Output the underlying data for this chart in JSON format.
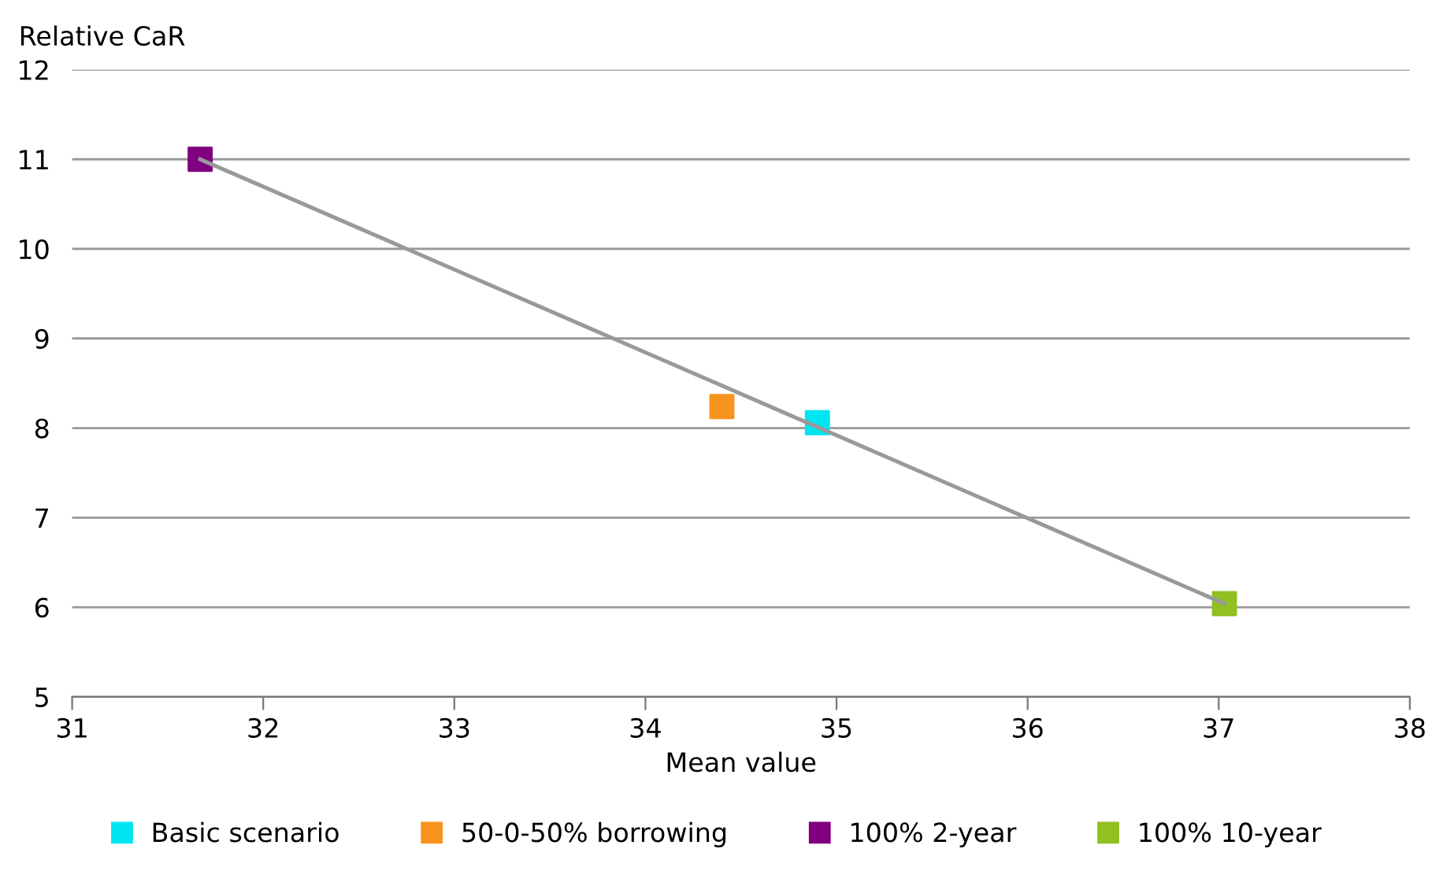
{
  "chart_data": {
    "type": "scatter",
    "ylabel": "Relative CaR",
    "xlabel": "Mean value",
    "series": [
      {
        "type": "line",
        "marker": "none",
        "color": "#999999",
        "x": [
          31.67,
          37.03
        ],
        "values": [
          11.0,
          6.04
        ]
      },
      {
        "name": "Basic scenario",
        "color": "#00e5f0",
        "x": [
          34.9
        ],
        "values": [
          8.06
        ]
      },
      {
        "name": "50-0-50% borrowing",
        "color": "#f7941d",
        "x": [
          34.4
        ],
        "values": [
          8.24
        ]
      },
      {
        "name": "100% 2-year",
        "color": "#800080",
        "x": [
          31.67
        ],
        "values": [
          11.0
        ]
      },
      {
        "name": "100% 10-year",
        "color": "#92c020",
        "x": [
          37.03
        ],
        "values": [
          6.04
        ]
      }
    ],
    "xlim": [
      31,
      38
    ],
    "xticks": [
      31,
      32,
      33,
      34,
      35,
      36,
      37,
      38
    ],
    "ylim": [
      5,
      12
    ],
    "yticks": [
      5,
      6,
      7,
      8,
      9,
      10,
      11,
      12
    ],
    "grid": "y",
    "legend": "bottom",
    "marker": "square"
  }
}
